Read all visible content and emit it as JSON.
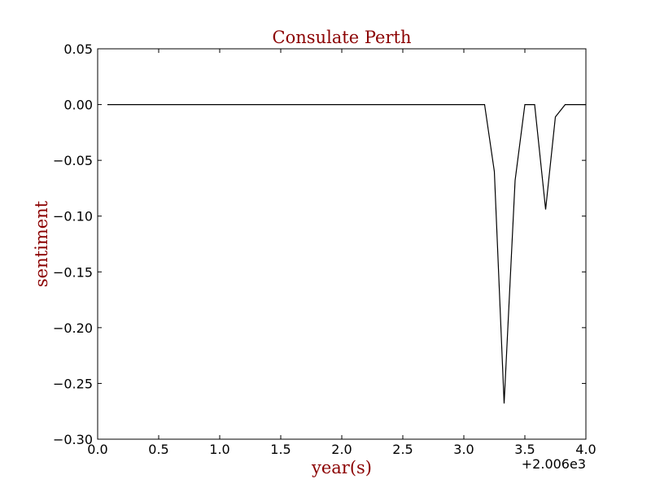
{
  "chart_data": {
    "type": "line",
    "title": "Consulate Perth",
    "xlabel": "year(s)",
    "ylabel": "sentiment",
    "x_offset_label": "+2.006e3",
    "xlim": [
      0.0,
      4.0
    ],
    "ylim": [
      -0.3,
      0.05
    ],
    "xticks": [
      "0.0",
      "0.5",
      "1.0",
      "1.5",
      "2.0",
      "2.5",
      "3.0",
      "3.5",
      "4.0"
    ],
    "yticks": [
      "0.05",
      "0.00",
      "−0.05",
      "−0.10",
      "−0.15",
      "−0.20",
      "−0.25",
      "−0.30"
    ],
    "grid": false,
    "line_color": "#000000",
    "text_color": "#8b0000",
    "series": [
      {
        "x": [
          0.08,
          0.17,
          0.25,
          0.33,
          0.42,
          0.5,
          0.58,
          0.67,
          0.75,
          0.83,
          0.92,
          1.0,
          1.08,
          1.17,
          1.25,
          1.33,
          1.42,
          1.5,
          1.58,
          1.67,
          1.75,
          1.83,
          1.92,
          2.0,
          2.08,
          2.17,
          2.25,
          2.33,
          2.42,
          2.5,
          2.58,
          2.67,
          2.75,
          2.83,
          2.92,
          3.0,
          3.08,
          3.17,
          3.25,
          3.33,
          3.42,
          3.5,
          3.58,
          3.67,
          3.75,
          3.83,
          3.92,
          4.0
        ],
        "y": [
          0,
          0,
          0,
          0,
          0,
          0,
          0,
          0,
          0,
          0,
          0,
          0,
          0,
          0,
          0,
          0,
          0,
          0,
          0,
          0,
          0,
          0,
          0,
          0,
          0,
          0,
          0,
          0,
          0,
          0,
          0,
          0,
          0,
          0,
          0,
          0,
          0,
          0,
          -0.06,
          -0.268,
          -0.068,
          0,
          0,
          -0.094,
          -0.011,
          0,
          0,
          0
        ]
      }
    ]
  }
}
